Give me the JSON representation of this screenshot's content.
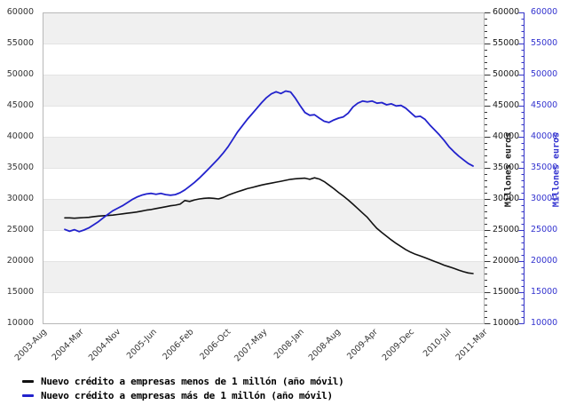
{
  "chart_data": {
    "type": "line",
    "title": "",
    "xlabel": "",
    "right_axis_label": "Millones euros",
    "ylim": [
      10000,
      60000
    ],
    "y_tick_labels": [
      "60000",
      "55000",
      "50000",
      "45000",
      "40000",
      "35000",
      "30000",
      "25000",
      "20000",
      "15000",
      "10000"
    ],
    "x_tick_labels": [
      "2003-Aug",
      "2004-Mar",
      "2004-Nov",
      "2005-Jun",
      "2006-Feb",
      "2006-Oct",
      "2007-May",
      "2008-Jan",
      "2008-Aug",
      "2009-Apr",
      "2009-Dec",
      "2010-Jul",
      "2011-Mar"
    ],
    "x_unit": "month",
    "x_first_point": "2004-02",
    "x_last_point": "2011-03",
    "grid": "horizontal-bands",
    "legend_position": "bottom-left",
    "series": [
      {
        "name": "Nuevo crédito a empresas menos de 1 millón (año móvil)",
        "color": "#111111",
        "values": [
          26950,
          26950,
          26900,
          26950,
          27000,
          27050,
          27150,
          27250,
          27300,
          27350,
          27400,
          27500,
          27600,
          27700,
          27800,
          27900,
          28050,
          28200,
          28300,
          28450,
          28600,
          28750,
          28900,
          29000,
          29150,
          29750,
          29600,
          29850,
          30000,
          30100,
          30150,
          30100,
          30000,
          30250,
          30600,
          30900,
          31150,
          31400,
          31650,
          31850,
          32050,
          32250,
          32400,
          32550,
          32700,
          32850,
          33000,
          33150,
          33250,
          33300,
          33350,
          33150,
          33400,
          33200,
          32800,
          32250,
          31650,
          31050,
          30450,
          29850,
          29150,
          28450,
          27750,
          27050,
          26100,
          25250,
          24600,
          24000,
          23400,
          22850,
          22350,
          21850,
          21450,
          21100,
          20850,
          20550,
          20250,
          19950,
          19650,
          19350,
          19100,
          18850,
          18550,
          18300,
          18100,
          18000
        ]
      },
      {
        "name": "Nuevo crédito a empresas más de 1 millón (año móvil)",
        "color": "#2222cc",
        "values": [
          25100,
          24800,
          25050,
          24750,
          25000,
          25350,
          25850,
          26350,
          26950,
          27550,
          28100,
          28500,
          28900,
          29400,
          29900,
          30300,
          30600,
          30800,
          30900,
          30750,
          30900,
          30700,
          30600,
          30700,
          31000,
          31450,
          32050,
          32650,
          33350,
          34100,
          34900,
          35700,
          36500,
          37400,
          38400,
          39600,
          40800,
          41800,
          42800,
          43700,
          44600,
          45500,
          46300,
          46900,
          47250,
          46950,
          47350,
          47200,
          46200,
          45000,
          43900,
          43450,
          43550,
          43000,
          42500,
          42300,
          42700,
          43000,
          43200,
          43800,
          44800,
          45400,
          45750,
          45600,
          45750,
          45400,
          45500,
          45150,
          45300,
          44950,
          45050,
          44600,
          43900,
          43200,
          43300,
          42800,
          41900,
          41100,
          40300,
          39400,
          38400,
          37600,
          36900,
          36300,
          35700,
          35300
        ]
      }
    ]
  },
  "colors": {
    "band": "#f0f0f0",
    "band_edge": "#e3e3e3",
    "plot_border": "#b8b8b8",
    "axis_right_ticks": "#333333",
    "axis_blue": "#3333c8",
    "blue_label": "#3333cf",
    "left_label": "#333333"
  },
  "legend": {
    "items": [
      {
        "label": "Nuevo crédito a empresas menos de 1 millón (año móvil)",
        "color": "#111111"
      },
      {
        "label": "Nuevo crédito a empresas más de 1 millón (año móvil)",
        "color": "#2222cc"
      }
    ]
  }
}
